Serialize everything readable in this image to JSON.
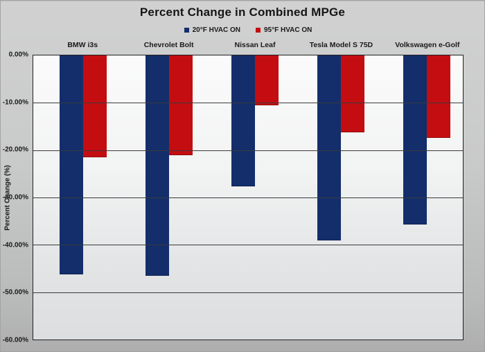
{
  "chart_data": {
    "type": "bar",
    "title": "Percent Change in Combined MPGe",
    "categories": [
      "BMW i3s",
      "Chevrolet Bolt",
      "Nissan Leaf",
      "Tesla Model S 75D",
      "Volkswagen e-Golf"
    ],
    "series": [
      {
        "name": "20°F HVAC ON",
        "color": "#132e6b",
        "values": [
          -46.2,
          -46.6,
          -27.6,
          -39.1,
          -35.7
        ]
      },
      {
        "name": "95°F HVAC ON",
        "color": "#c40d11",
        "values": [
          -21.5,
          -21.0,
          -10.5,
          -16.2,
          -17.4
        ]
      }
    ],
    "xlabel": "",
    "ylabel": "Percent Change (%)",
    "ylim": [
      -60,
      0
    ],
    "y_tick_labels": [
      "0.00%",
      "-10.00%",
      "-20.00%",
      "-30.00%",
      "-40.00%",
      "-50.00%",
      "-60.00%"
    ],
    "gridline_step": 10,
    "grid": true,
    "legend_position": "top"
  },
  "colors": {
    "series_20f": "#132e6b",
    "series_95f": "#c40d11",
    "plot_bg_top": "#fbfbfb",
    "plot_bg_bottom": "#dcdee0",
    "outer_bg": "#c9caca",
    "gridline": "#3a3a3a",
    "text": "#1a1a1a"
  }
}
